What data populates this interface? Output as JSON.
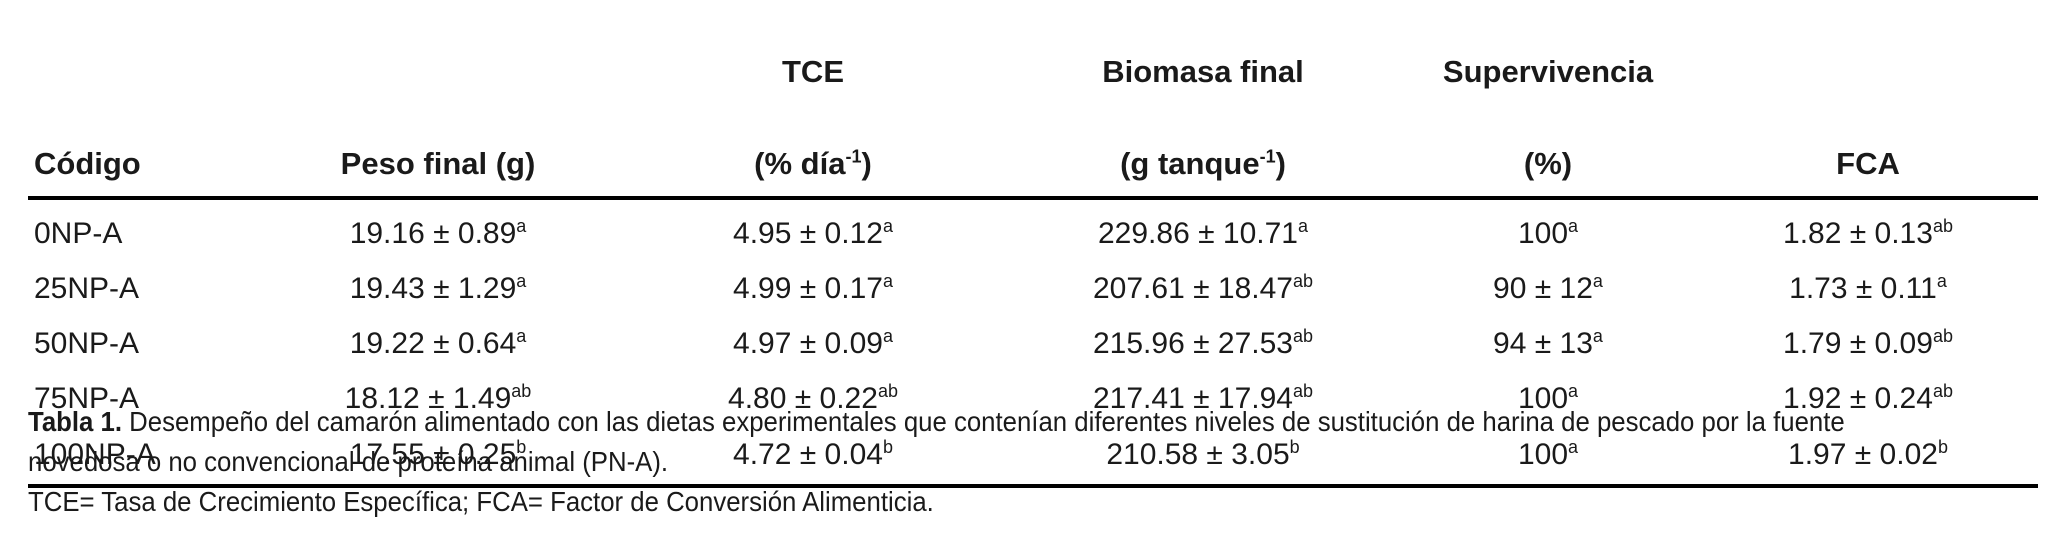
{
  "table": {
    "header_top": [
      "",
      "",
      "TCE",
      "Biomasa final",
      "Supervivencia",
      ""
    ],
    "header_bottom": [
      {
        "text": "Código",
        "sup": ""
      },
      {
        "text": "Peso final (g)",
        "sup": ""
      },
      {
        "text": "(% día",
        "sup": "-1",
        "tail": ")"
      },
      {
        "text": "(g tanque",
        "sup": "-1",
        "tail": ")"
      },
      {
        "text": "(%)",
        "sup": ""
      },
      {
        "text": "FCA",
        "sup": ""
      }
    ],
    "rows": [
      {
        "code": "0NP-A",
        "cells": [
          {
            "v": "19.16 ± 0.89",
            "s": "a"
          },
          {
            "v": "4.95 ± 0.12",
            "s": "a"
          },
          {
            "v": "229.86 ± 10.71",
            "s": "a"
          },
          {
            "v": "100",
            "s": "a"
          },
          {
            "v": "1.82 ± 0.13",
            "s": "ab"
          }
        ]
      },
      {
        "code": "25NP-A",
        "cells": [
          {
            "v": "19.43 ± 1.29",
            "s": "a"
          },
          {
            "v": "4.99 ± 0.17",
            "s": "a"
          },
          {
            "v": "207.61 ± 18.47",
            "s": "ab"
          },
          {
            "v": "90 ± 12",
            "s": "a"
          },
          {
            "v": "1.73 ± 0.11",
            "s": "a"
          }
        ]
      },
      {
        "code": "50NP-A",
        "cells": [
          {
            "v": "19.22 ± 0.64",
            "s": "a"
          },
          {
            "v": "4.97 ± 0.09",
            "s": "a"
          },
          {
            "v": "215.96 ± 27.53",
            "s": "ab"
          },
          {
            "v": "94 ± 13",
            "s": "a"
          },
          {
            "v": "1.79 ± 0.09",
            "s": "ab"
          }
        ]
      },
      {
        "code": "75NP-A",
        "cells": [
          {
            "v": "18.12 ± 1.49",
            "s": "ab"
          },
          {
            "v": "4.80 ± 0.22",
            "s": "ab"
          },
          {
            "v": "217.41 ± 17.94",
            "s": "ab"
          },
          {
            "v": "100",
            "s": "a"
          },
          {
            "v": "1.92 ± 0.24",
            "s": "ab"
          }
        ]
      },
      {
        "code": "100NP-A",
        "cells": [
          {
            "v": "17.55 ± 0.25",
            "s": "b"
          },
          {
            "v": "4.72 ± 0.04",
            "s": "b"
          },
          {
            "v": "210.58 ± 3.05",
            "s": "b"
          },
          {
            "v": "100",
            "s": "a"
          },
          {
            "v": "1.97 ± 0.02",
            "s": "b"
          }
        ]
      }
    ]
  },
  "caption": {
    "label": "Tabla 1.",
    "text": " Desempeño del camarón alimentado con las dietas experimentales que contenían diferentes niveles de sustitución de harina de pescado por la fuente novedosa o no convencional de proteína animal (PN-A).",
    "note": "TCE= Tasa de Crecimiento Específica; FCA= Factor de Conversión Alimenticia."
  }
}
